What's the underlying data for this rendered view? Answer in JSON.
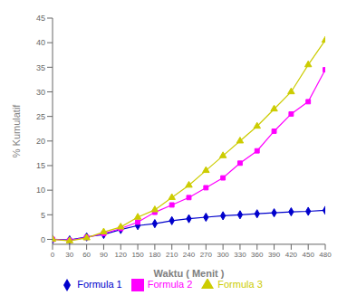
{
  "chart_data": {
    "type": "line",
    "x": [
      0,
      30,
      60,
      90,
      120,
      150,
      180,
      210,
      240,
      270,
      300,
      330,
      360,
      390,
      420,
      450,
      480
    ],
    "series": [
      {
        "name": "Formula 1",
        "color": "#0000cc",
        "marker": "diamond",
        "values": [
          0,
          -0.1,
          0.5,
          1.0,
          2.0,
          2.8,
          3.2,
          3.8,
          4.2,
          4.5,
          4.8,
          5.0,
          5.2,
          5.4,
          5.6,
          5.7,
          5.9
        ]
      },
      {
        "name": "Formula 2",
        "color": "#ff00ff",
        "marker": "square",
        "values": [
          0,
          -0.2,
          0.4,
          1.2,
          2.2,
          3.5,
          5.5,
          7.0,
          8.5,
          10.5,
          12.5,
          15.5,
          18.0,
          22.0,
          25.5,
          28.0,
          34.5
        ]
      },
      {
        "name": "Formula 3",
        "color": "#cccc00",
        "marker": "triangle",
        "values": [
          0,
          -0.3,
          0.3,
          1.5,
          2.5,
          4.5,
          6.0,
          8.5,
          11.0,
          14.0,
          17.0,
          20.0,
          23.0,
          26.5,
          30.0,
          35.5,
          40.5
        ]
      }
    ],
    "xlabel": "Waktu ( Menit )",
    "ylabel": "% Kumulatif",
    "xlim": [
      0,
      480
    ],
    "ylim": [
      -1,
      45
    ],
    "xticks": [
      0,
      30,
      60,
      90,
      120,
      150,
      180,
      210,
      240,
      270,
      300,
      330,
      360,
      390,
      420,
      450,
      480
    ],
    "yticks": [
      0,
      5,
      10,
      15,
      20,
      25,
      30,
      35,
      40,
      45
    ],
    "grid": false,
    "legend": "bottom"
  }
}
